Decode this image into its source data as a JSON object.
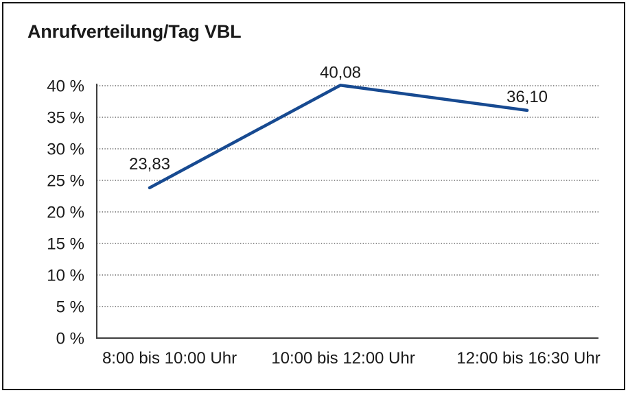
{
  "chart_data": {
    "type": "line",
    "title": "Anrufverteilung/Tag VBL",
    "categories": [
      "8:00 bis 10:00 Uhr",
      "10:00 bis 12:00 Uhr",
      "12:00 bis 16:30 Uhr"
    ],
    "values": [
      23.83,
      40.08,
      36.1
    ],
    "data_labels": [
      "23,83",
      "40,08",
      "36,10"
    ],
    "y_axis": {
      "range": [
        0,
        40
      ],
      "unit": "%",
      "ticks": [
        {
          "value": 0,
          "label": "0 %"
        },
        {
          "value": 5,
          "label": "5 %"
        },
        {
          "value": 10,
          "label": "10 %"
        },
        {
          "value": 15,
          "label": "15 %"
        },
        {
          "value": 20,
          "label": "20 %"
        },
        {
          "value": 25,
          "label": "25 %"
        },
        {
          "value": 30,
          "label": "30 %"
        },
        {
          "value": 35,
          "label": "35 %"
        },
        {
          "value": 40,
          "label": "40 %"
        }
      ]
    },
    "grid": {
      "horizontal": true,
      "style": "dotted"
    },
    "legend": "none",
    "colors": {
      "line": "#174A91",
      "text": "#1A1A1A",
      "axis": "#3D3D3D",
      "gridline": "#4D4D4D",
      "background": "#FFFFFF",
      "border": "#141414"
    }
  }
}
